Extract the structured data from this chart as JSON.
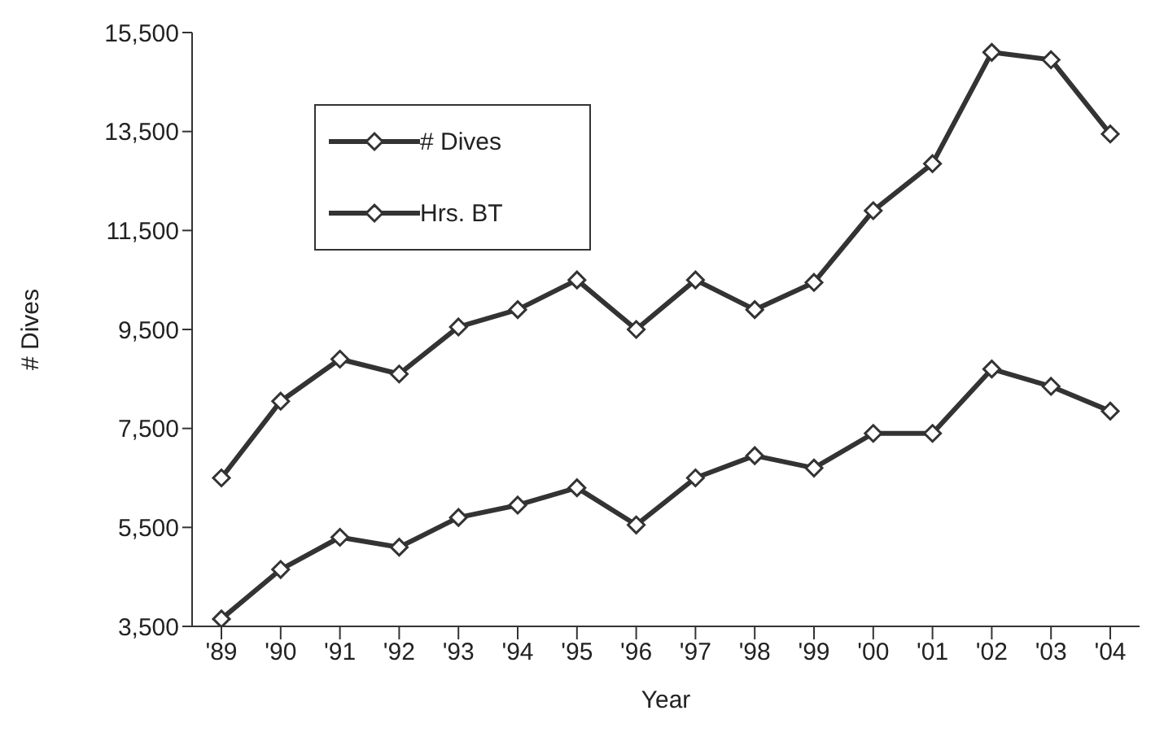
{
  "chart_data": {
    "type": "line",
    "xlabel": "Year",
    "ylabel": "# Dives",
    "categories": [
      "'89",
      "'90",
      "'91",
      "'92",
      "'93",
      "'94",
      "'95",
      "'96",
      "'97",
      "'98",
      "'99",
      "'00",
      "'01",
      "'02",
      "'03",
      "'04"
    ],
    "series": [
      {
        "name": "# Dives",
        "color": "#333333",
        "values": [
          6500,
          8050,
          8900,
          8600,
          9550,
          9900,
          10500,
          9500,
          10500,
          9900,
          10450,
          11900,
          12850,
          15100,
          14950,
          13450
        ]
      },
      {
        "name": "Hrs. BT",
        "color": "#333333",
        "values": [
          3650,
          4650,
          5300,
          5100,
          5700,
          5950,
          6300,
          5550,
          6500,
          6950,
          6700,
          7400,
          7400,
          8700,
          8350,
          7850
        ]
      }
    ],
    "ylim": [
      3500,
      15500
    ],
    "yticks": [
      {
        "value": 3500,
        "label": "3,500"
      },
      {
        "value": 5500,
        "label": "5,500"
      },
      {
        "value": 7500,
        "label": "7,500"
      },
      {
        "value": 9500,
        "label": "9,500"
      },
      {
        "value": 11500,
        "label": "11,500"
      },
      {
        "value": 13500,
        "label": "13,500"
      },
      {
        "value": 15500,
        "label": "15,500"
      }
    ],
    "grid": false,
    "legend": "top left",
    "marker": "diamond",
    "line_style": "solid"
  }
}
